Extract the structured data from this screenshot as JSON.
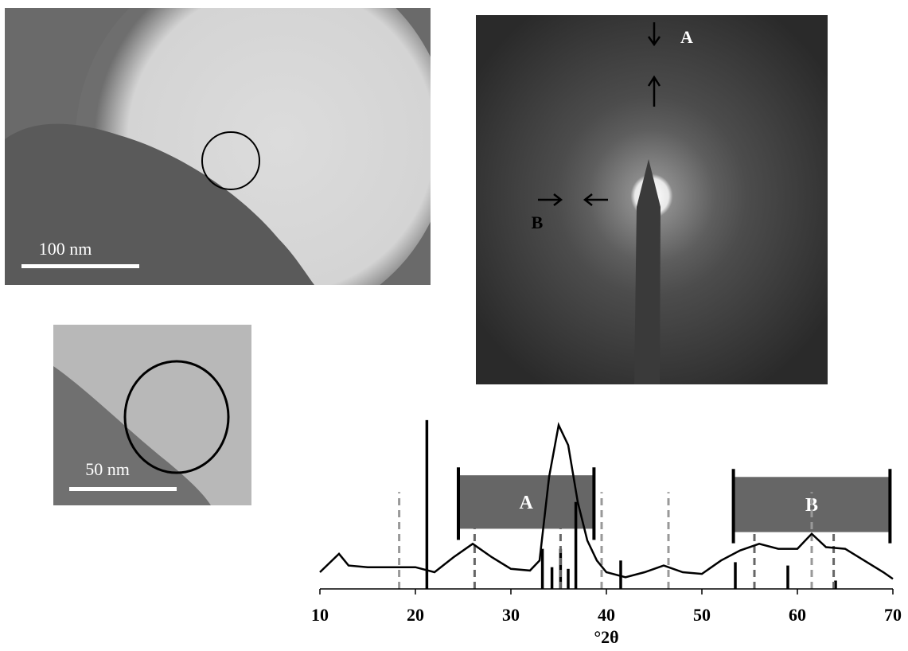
{
  "images": {
    "tem": {
      "scale_label": "100 nm"
    },
    "tem_inset": {
      "scale_label": "50 nm"
    },
    "saed": {
      "labels": [
        "A",
        "B"
      ]
    }
  },
  "chart_data": {
    "type": "line",
    "xlabel": "°2θ",
    "xlim": [
      10,
      70
    ],
    "xticks": [
      10,
      20,
      30,
      40,
      50,
      60,
      70
    ],
    "ylim": [
      0,
      100
    ],
    "series": [
      {
        "color": "#000000",
        "x": [
          10,
          12,
          13,
          15,
          17,
          20,
          22,
          24,
          26,
          28,
          30,
          32,
          33,
          34,
          35,
          36,
          37,
          38,
          39,
          40,
          42,
          44,
          46,
          48,
          50,
          52,
          54,
          56,
          58,
          60,
          61.5,
          63,
          65,
          67,
          69,
          70
        ],
        "values": [
          10,
          21,
          14,
          13,
          13,
          13,
          10,
          19,
          27,
          19,
          12,
          11,
          17,
          67,
          98,
          86,
          52,
          29,
          17,
          10,
          7,
          10,
          14,
          10,
          9,
          17,
          23,
          27,
          24,
          24,
          33,
          25,
          24,
          17,
          10,
          6
        ]
      }
    ],
    "sticks": [
      {
        "color": "#000000",
        "dash": false,
        "x": [
          21.2,
          33.3,
          34.3,
          35.2,
          36,
          36.8,
          41.5,
          53.5,
          59,
          64
        ],
        "values": [
          101,
          24,
          13,
          24,
          12,
          52,
          17,
          16,
          14,
          5
        ]
      },
      {
        "color": "#999999",
        "dash": true,
        "x": [
          18.3,
          39.5,
          46.5,
          61.5
        ],
        "values": [
          58,
          58,
          58,
          58
        ]
      },
      {
        "color": "#666666",
        "dash": true,
        "x": [
          26.2,
          35.2,
          55.5,
          63.8
        ],
        "values": [
          58,
          58,
          58,
          58
        ]
      }
    ],
    "bands": [
      {
        "label": "A",
        "color": "#666666",
        "x": [
          24.5,
          38.7
        ],
        "y": [
          36,
          68
        ]
      },
      {
        "label": "B",
        "color": "#666666",
        "x": [
          53.3,
          69.7
        ],
        "y": [
          34,
          67
        ]
      }
    ]
  }
}
